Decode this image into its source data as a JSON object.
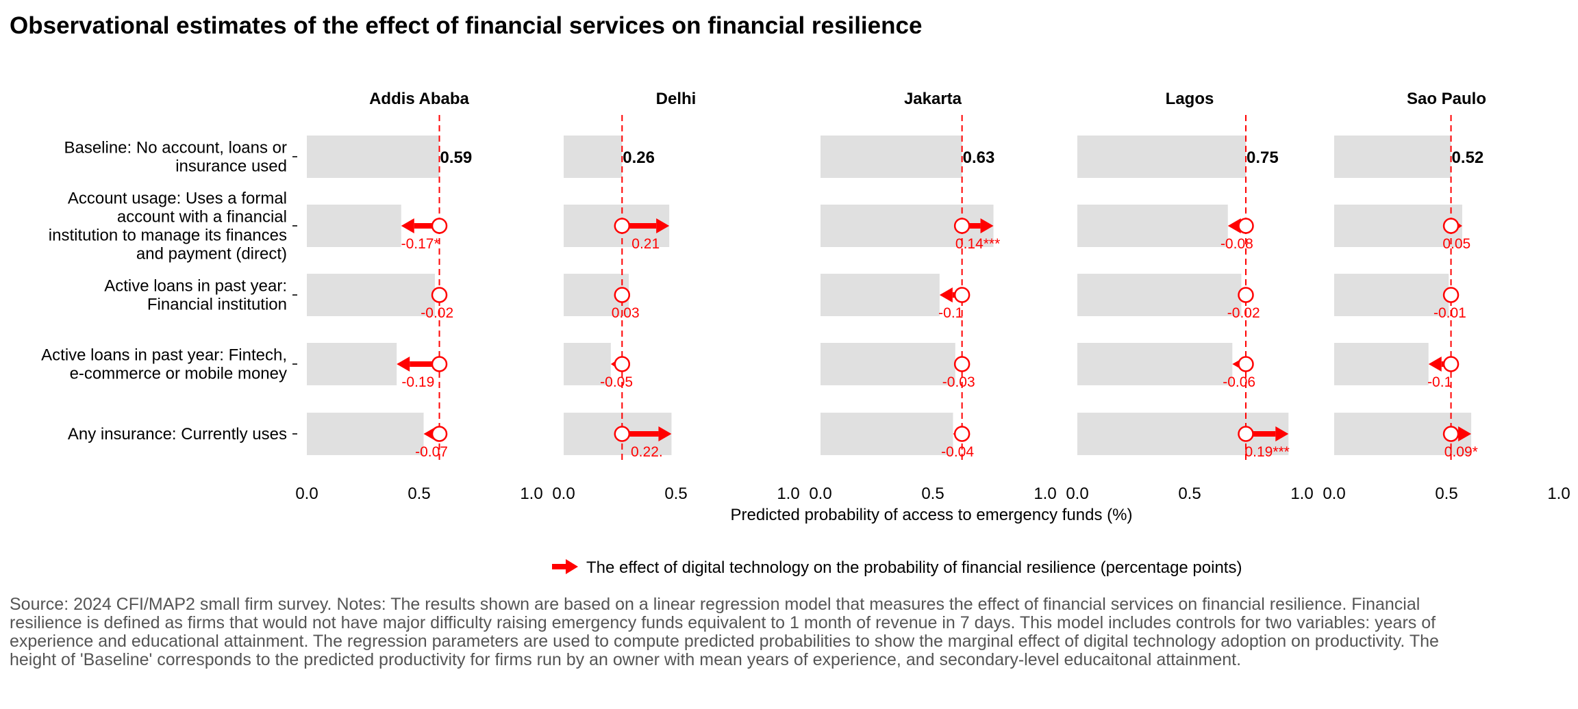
{
  "title": "Observational estimates of the effect of financial services on financial resilience",
  "source_note": "Source: 2024 CFI/MAP2 small firm survey. Notes: The results shown are based on a linear regression model that measures the effect of financial services on financial resilience. Financial resilience is defined as firms that would not have major difficulty raising emergency funds equivalent to 1 month of revenue in 7 days. This model includes controls for two variables: years of experience and educational attainment. The regression parameters are used to compute predicted probabilities to show the marginal effect of digital technology adoption on productivity. The height of 'Baseline' corresponds to the predicted productivity for firms run by an owner with mean years of experience, and secondary-level educaitonal attainment.",
  "colors": {
    "accent": "#ff0000",
    "bar": "#e0e0e0",
    "note": "#555555"
  },
  "chart_data": {
    "type": "bar",
    "orientation": "horizontal",
    "xlabel": "Predicted probability of access to emergency funds (%)",
    "ylabel": "",
    "xlim": [
      0,
      1
    ],
    "x_ticks": [
      0,
      0.5,
      1
    ],
    "x_tick_labels": [
      "0.0",
      "0.5",
      "1.0"
    ],
    "grid": false,
    "legend": {
      "position": "bottom",
      "entries": [
        "The effect of digital technology on the probability of financial resilience (percentage points)"
      ]
    },
    "categories": [
      "Baseline: No account, loans or insurance used",
      "Account usage: Uses a formal account with a financial institution to manage its finances and payment (direct)",
      "Active loans in past year: Financial institution",
      "Active loans in past year: Fintech, e-commerce or mobile money",
      "Any insurance: Currently uses"
    ],
    "category_label_lines": [
      [
        "Baseline: No account, loans or",
        "insurance used"
      ],
      [
        "Account usage: Uses a formal",
        "account with a financial",
        "institution to manage its finances",
        "and payment (direct)"
      ],
      [
        "Active loans in past year:",
        "Financial institution"
      ],
      [
        "Active loans in past year: Fintech,",
        "e-commerce or mobile money"
      ],
      [
        "Any insurance: Currently uses"
      ]
    ],
    "panels": [
      {
        "name": "Addis Ababa",
        "baseline": 0.59,
        "baseline_label": "0.59",
        "effects": [
          -0.17,
          -0.02,
          -0.19,
          -0.07
        ],
        "effect_labels": [
          "-0.17*",
          "-0.02",
          "-0.19",
          "-0.07"
        ]
      },
      {
        "name": "Delhi",
        "baseline": 0.26,
        "baseline_label": "0.26",
        "effects": [
          0.21,
          0.03,
          -0.05,
          0.22
        ],
        "effect_labels": [
          "0.21",
          "0.03",
          "-0.05",
          "0.22."
        ]
      },
      {
        "name": "Jakarta",
        "baseline": 0.63,
        "baseline_label": "0.63",
        "effects": [
          0.14,
          -0.1,
          -0.03,
          -0.04
        ],
        "effect_labels": [
          "0.14***",
          "-0.1",
          "-0.03",
          "-0.04"
        ]
      },
      {
        "name": "Lagos",
        "baseline": 0.75,
        "baseline_label": "0.75",
        "effects": [
          -0.08,
          -0.02,
          -0.06,
          0.19
        ],
        "effect_labels": [
          "-0.08",
          "-0.02",
          "-0.06",
          "0.19***"
        ]
      },
      {
        "name": "Sao Paulo",
        "baseline": 0.52,
        "baseline_label": "0.52",
        "effects": [
          0.05,
          -0.01,
          -0.1,
          0.09
        ],
        "effect_labels": [
          "0.05",
          "-0.01",
          "-0.1",
          "0.09*"
        ]
      }
    ]
  }
}
